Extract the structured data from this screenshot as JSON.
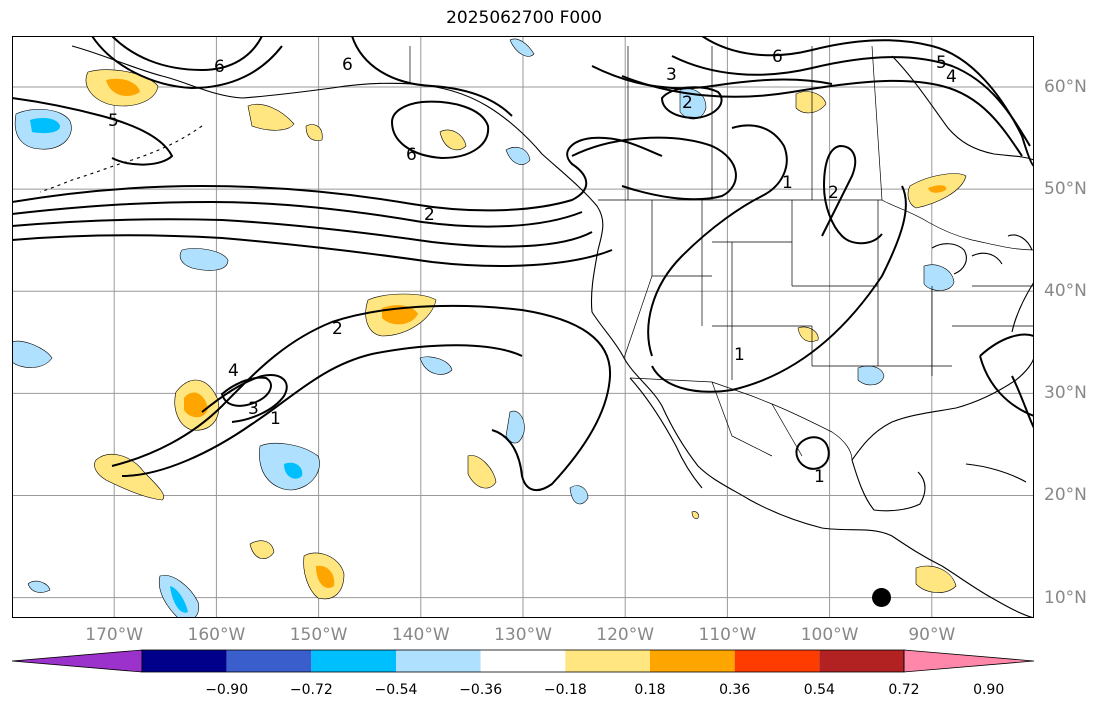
{
  "title": "2025062700 F000",
  "lat_labels": [
    {
      "text": "60°N",
      "lat": 60
    },
    {
      "text": "50°N",
      "lat": 50
    },
    {
      "text": "40°N",
      "lat": 40
    },
    {
      "text": "30°N",
      "lat": 30
    },
    {
      "text": "20°N",
      "lat": 20
    },
    {
      "text": "10°N",
      "lat": 10
    }
  ],
  "lon_labels": [
    {
      "text": "170°W",
      "lon": -170
    },
    {
      "text": "160°W",
      "lon": -160
    },
    {
      "text": "150°W",
      "lon": -150
    },
    {
      "text": "140°W",
      "lon": -140
    },
    {
      "text": "130°W",
      "lon": -130
    },
    {
      "text": "120°W",
      "lon": -120
    },
    {
      "text": "110°W",
      "lon": -110
    },
    {
      "text": "100°W",
      "lon": -100
    },
    {
      "text": "90°W",
      "lon": -90
    }
  ],
  "colorbar": {
    "labels": [
      "−0.90",
      "−0.72",
      "−0.54",
      "−0.36",
      "−0.18",
      "0.18",
      "0.36",
      "0.54",
      "0.72",
      "0.90"
    ],
    "colors": [
      "#9b32cc",
      "#00008b",
      "#3a5fcd",
      "#00bfff",
      "#afe1ff",
      "#ffffff",
      "#ffe680",
      "#ffa500",
      "#ff3c00",
      "#b22222",
      "#ff88aa"
    ]
  },
  "contour_labels": [
    "6",
    "6",
    "6",
    "6",
    "5",
    "5",
    "4",
    "4",
    "3",
    "3",
    "2",
    "2",
    "2",
    "2",
    "1",
    "1",
    "1",
    "1"
  ]
}
